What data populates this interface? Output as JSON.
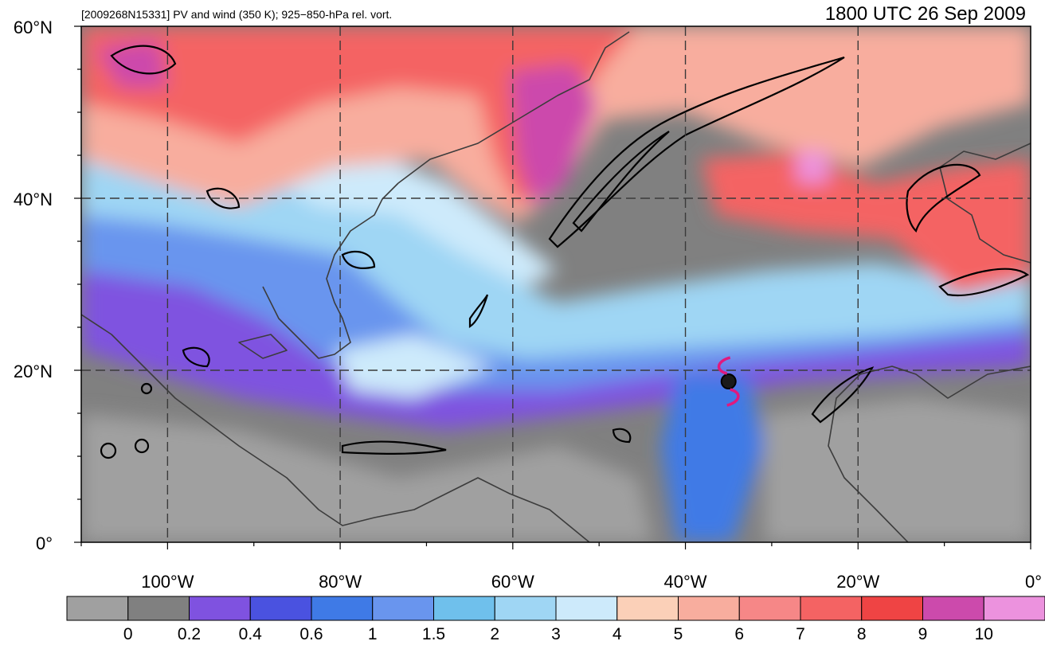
{
  "title": {
    "left": "[2009268N15331] PV and wind (350 K); 925−850-hPa rel. vort.",
    "right": "1800 UTC 26 Sep 2009"
  },
  "map": {
    "lon_range": [
      -110,
      0
    ],
    "lat_range": [
      0,
      60
    ],
    "lon_grid": [
      -100,
      -80,
      -60,
      -40,
      -20
    ],
    "lat_grid": [
      20,
      40
    ],
    "lon_labels": [
      "100°W",
      "80°W",
      "60°W",
      "40°W",
      "20°W",
      "0°"
    ],
    "lat_labels": [
      "60°N",
      "40°N",
      "20°N",
      "0°"
    ],
    "storm_symbol": {
      "lon": -35,
      "lat": 18.7,
      "color": "#e0197e",
      "icon": "tropical-cyclone-icon"
    }
  },
  "colorbar": {
    "colors": [
      "#a0a0a0",
      "#808080",
      "#7f52e0",
      "#4a52e0",
      "#3f7ae6",
      "#6995ee",
      "#6fc0ec",
      "#9fd6f4",
      "#cdeafb",
      "#fbd0b8",
      "#f8ad9e",
      "#f68787",
      "#f46363",
      "#ef4444",
      "#cc4aac",
      "#ec92de"
    ],
    "labels": [
      "0",
      "0.2",
      "0.4",
      "0.6",
      "1",
      "1.5",
      "2",
      "3",
      "4",
      "5",
      "6",
      "7",
      "8",
      "9",
      "10"
    ]
  }
}
